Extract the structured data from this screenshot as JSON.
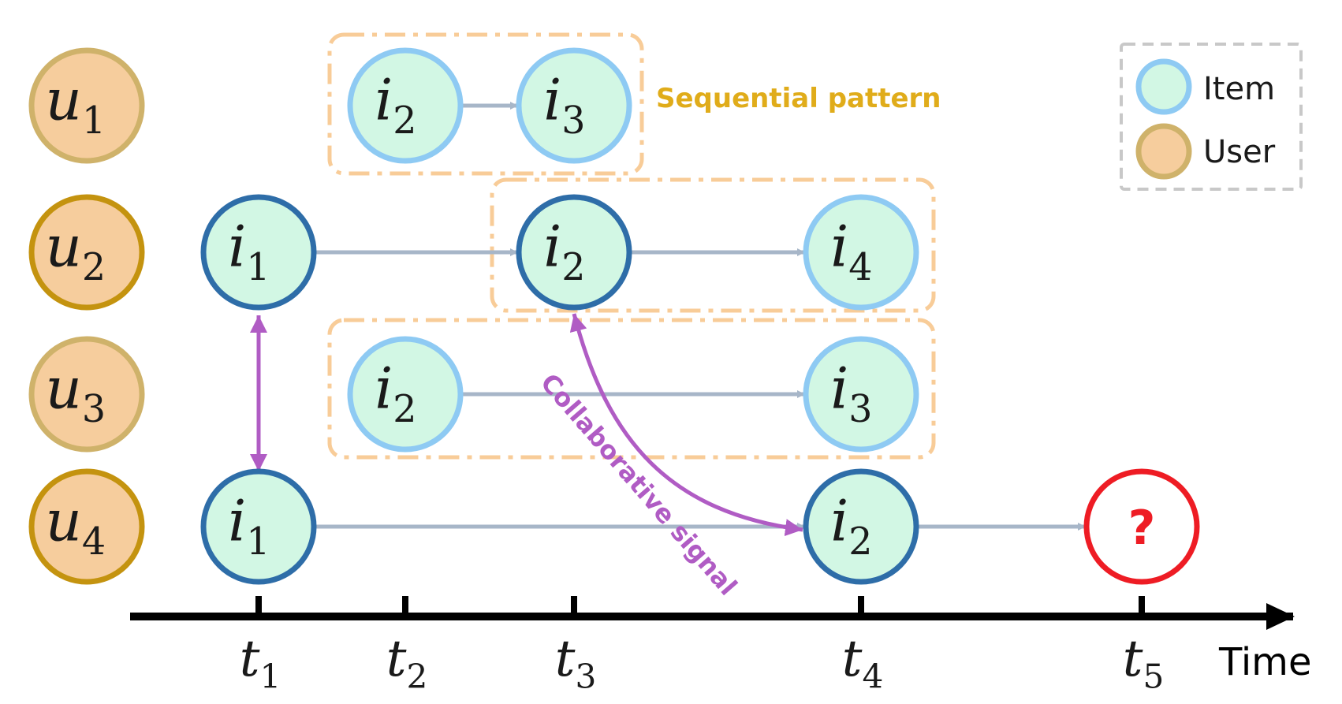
{
  "users": [
    {
      "id": "u1",
      "base": "u",
      "sub": "1",
      "style": "light"
    },
    {
      "id": "u2",
      "base": "u",
      "sub": "2",
      "style": "dark"
    },
    {
      "id": "u3",
      "base": "u",
      "sub": "3",
      "style": "light"
    },
    {
      "id": "u4",
      "base": "u",
      "sub": "4",
      "style": "dark"
    }
  ],
  "items": [
    {
      "id": "u1-i2",
      "row": 0,
      "col": "c2",
      "base": "i",
      "sub": "2",
      "style": "light"
    },
    {
      "id": "u1-i3",
      "row": 0,
      "col": "c3",
      "base": "i",
      "sub": "3",
      "style": "light"
    },
    {
      "id": "u2-i1",
      "row": 1,
      "col": "c1",
      "base": "i",
      "sub": "1",
      "style": "dark"
    },
    {
      "id": "u2-i2",
      "row": 1,
      "col": "c3",
      "base": "i",
      "sub": "2",
      "style": "dark"
    },
    {
      "id": "u2-i4",
      "row": 1,
      "col": "c4",
      "base": "i",
      "sub": "4",
      "style": "light"
    },
    {
      "id": "u3-i2",
      "row": 2,
      "col": "c2",
      "base": "i",
      "sub": "2",
      "style": "light"
    },
    {
      "id": "u3-i3",
      "row": 2,
      "col": "c4",
      "base": "i",
      "sub": "3",
      "style": "light"
    },
    {
      "id": "u4-i1",
      "row": 3,
      "col": "c1",
      "base": "i",
      "sub": "1",
      "style": "dark"
    },
    {
      "id": "u4-i2",
      "row": 3,
      "col": "c4",
      "base": "i",
      "sub": "2",
      "style": "dark"
    }
  ],
  "unknown_node": {
    "label": "?",
    "color": "#ee1c24"
  },
  "sequence_edges": [
    [
      "u1-i2",
      "u1-i3"
    ],
    [
      "u2-i1",
      "u2-i2"
    ],
    [
      "u2-i2",
      "u2-i4"
    ],
    [
      "u3-i2",
      "u3-i3"
    ],
    [
      "u4-i1",
      "u4-i2"
    ],
    [
      "u4-i2",
      "unknown"
    ]
  ],
  "collaborative_edges": [
    {
      "from": "u2-i1",
      "to": "u4-i1",
      "kind": "double"
    },
    {
      "from": "u2-i2",
      "to": "u4-i2",
      "kind": "curve"
    }
  ],
  "labels": {
    "sequential_pattern": "Sequential pattern",
    "collaborative_signal": "Collaborative signal",
    "time": "Time"
  },
  "timeline": {
    "ticks": [
      {
        "base": "t",
        "sub": "1",
        "col": "c1"
      },
      {
        "base": "t",
        "sub": "2",
        "col": "t2"
      },
      {
        "base": "t",
        "sub": "3",
        "col": "c3"
      },
      {
        "base": "t",
        "sub": "4",
        "col": "c4"
      },
      {
        "base": "t",
        "sub": "5",
        "col": "c5"
      }
    ]
  },
  "legend": {
    "items": [
      {
        "label": "Item",
        "style": "item"
      },
      {
        "label": "User",
        "style": "user"
      }
    ]
  },
  "colors": {
    "item_fill": "#d2f7e4",
    "item_light_stroke": "#8ecaf3",
    "item_dark_stroke": "#2e6da8",
    "user_fill": "#f6cd9d",
    "user_light_stroke": "#cfb26a",
    "user_dark_stroke": "#c4930f",
    "arrow": "#a7b6c8",
    "collab": "#b05cc4",
    "pattern_box": "#f8cc98",
    "pattern_text": "#e0ac1a",
    "axis": "#000000",
    "legend_border": "#c8c8c8"
  }
}
